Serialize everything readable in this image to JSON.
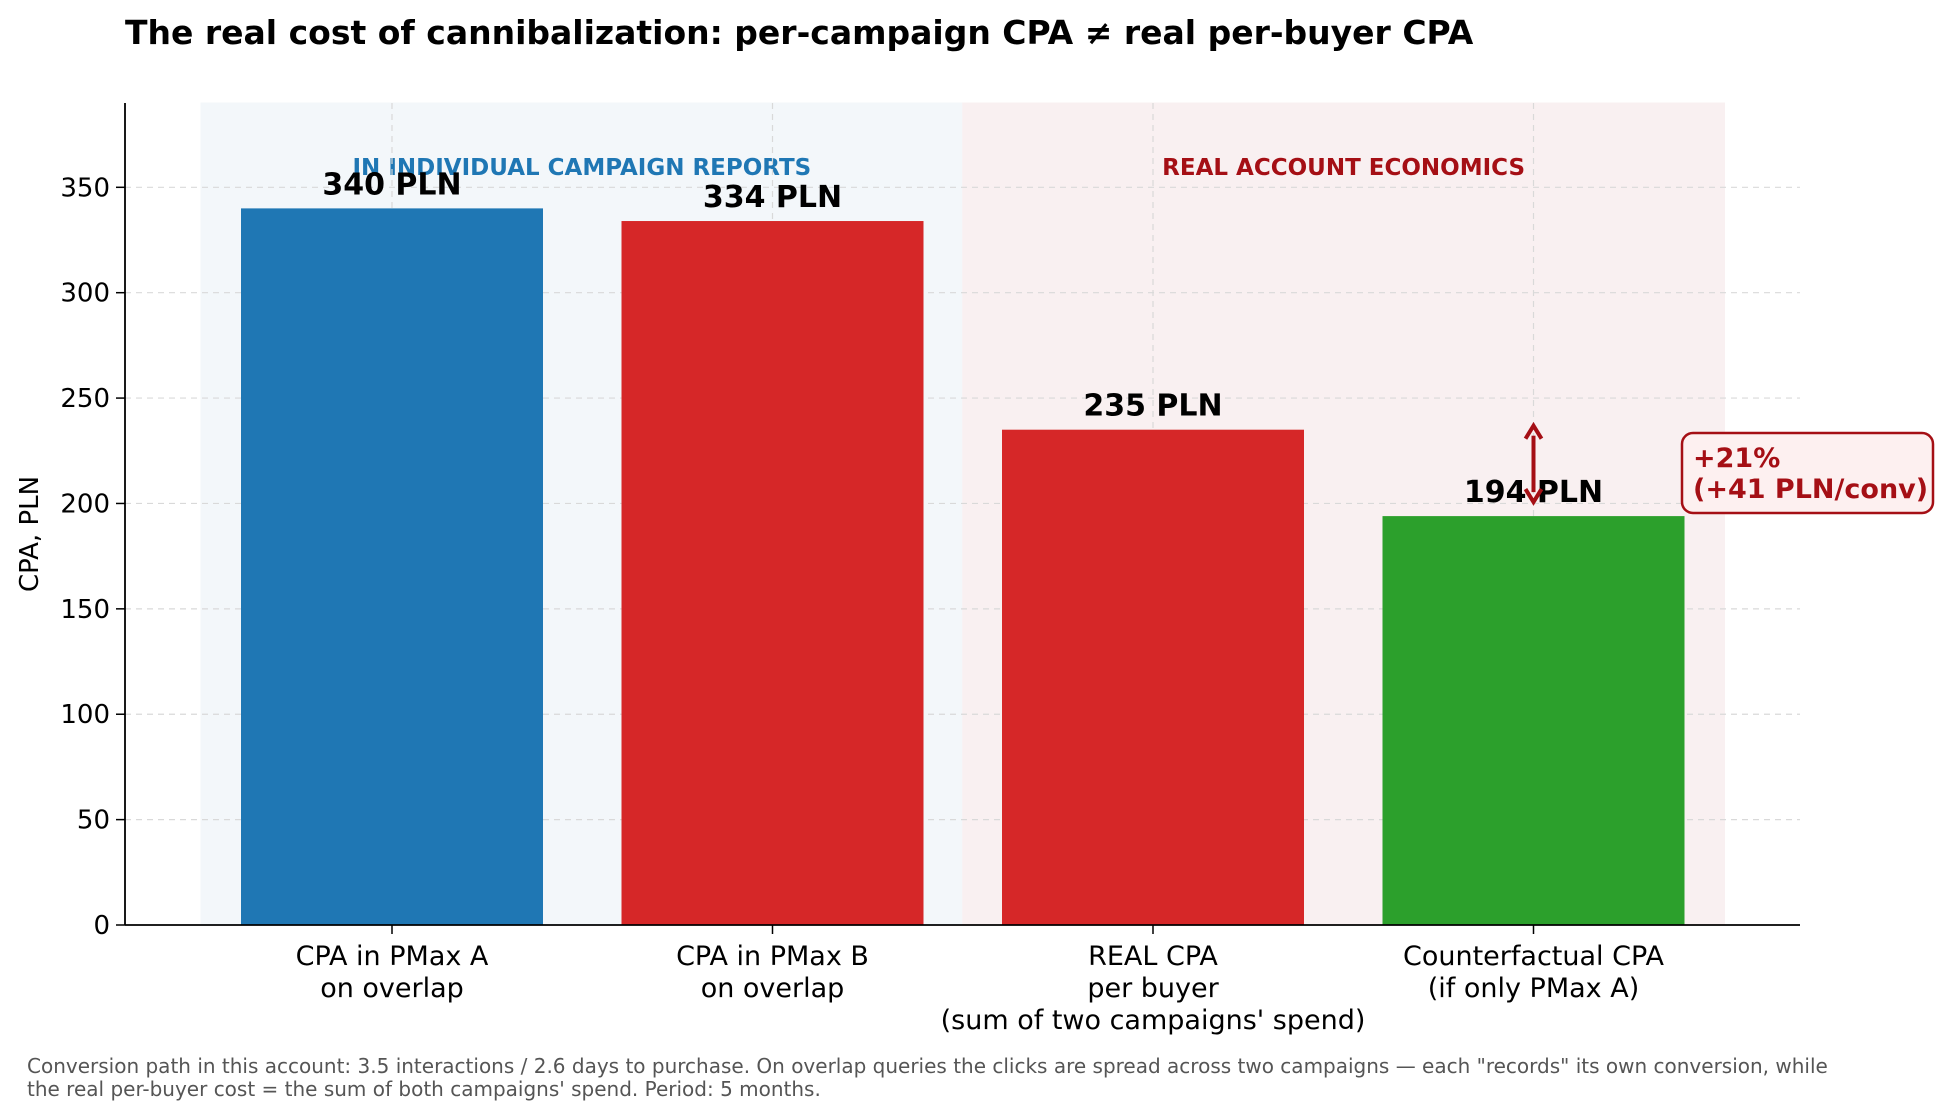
{
  "chart_data": {
    "type": "bar",
    "title": "The real cost of cannibalization: per-campaign CPA ≠ real per-buyer CPA",
    "xlabel": "",
    "ylabel": "CPA, PLN",
    "ylim": [
      0,
      390
    ],
    "yticks": [
      "0",
      "50",
      "100",
      "150",
      "200",
      "250",
      "300",
      "350"
    ],
    "grid": true,
    "categories": [
      [
        "CPA in PMax A",
        "on overlap"
      ],
      [
        "CPA in PMax B",
        "on overlap"
      ],
      [
        "REAL CPA",
        "per buyer",
        "(sum of two campaigns' spend)"
      ],
      [
        "Counterfactual CPA",
        "(if only PMax A)"
      ]
    ],
    "values": [
      340,
      334,
      235,
      194
    ],
    "value_labels": [
      "340 PLN",
      "334 PLN",
      "235 PLN",
      "194 PLN"
    ],
    "bar_colors": [
      "#1f77b4",
      "#d62728",
      "#d62728",
      "#2ca02c"
    ],
    "regions": [
      {
        "label": "IN INDIVIDUAL CAMPAIGN REPORTS",
        "from_category": 0,
        "to_category": 1,
        "fill": "#f3f7fa",
        "text_color": "#1f77b4"
      },
      {
        "label": "REAL ACCOUNT ECONOMICS",
        "from_category": 2,
        "to_category": 3,
        "fill": "#f9f0f1",
        "text_color": "#a50f15"
      }
    ],
    "annotation": {
      "lines": [
        "+21%",
        "(+41 PLN/conv)"
      ],
      "from_value": 194,
      "to_value": 235,
      "category": 3,
      "color": "#a50f15",
      "box_fill": "#fdf0f0"
    },
    "footnote": [
      "Conversion path in this account: 3.5 interactions / 2.6 days to purchase.  On overlap queries the clicks are spread across two campaigns — each \"records\" its own conversion, while",
      "the real per-buyer cost = the sum of both campaigns' spend. Period: 5 months."
    ]
  }
}
